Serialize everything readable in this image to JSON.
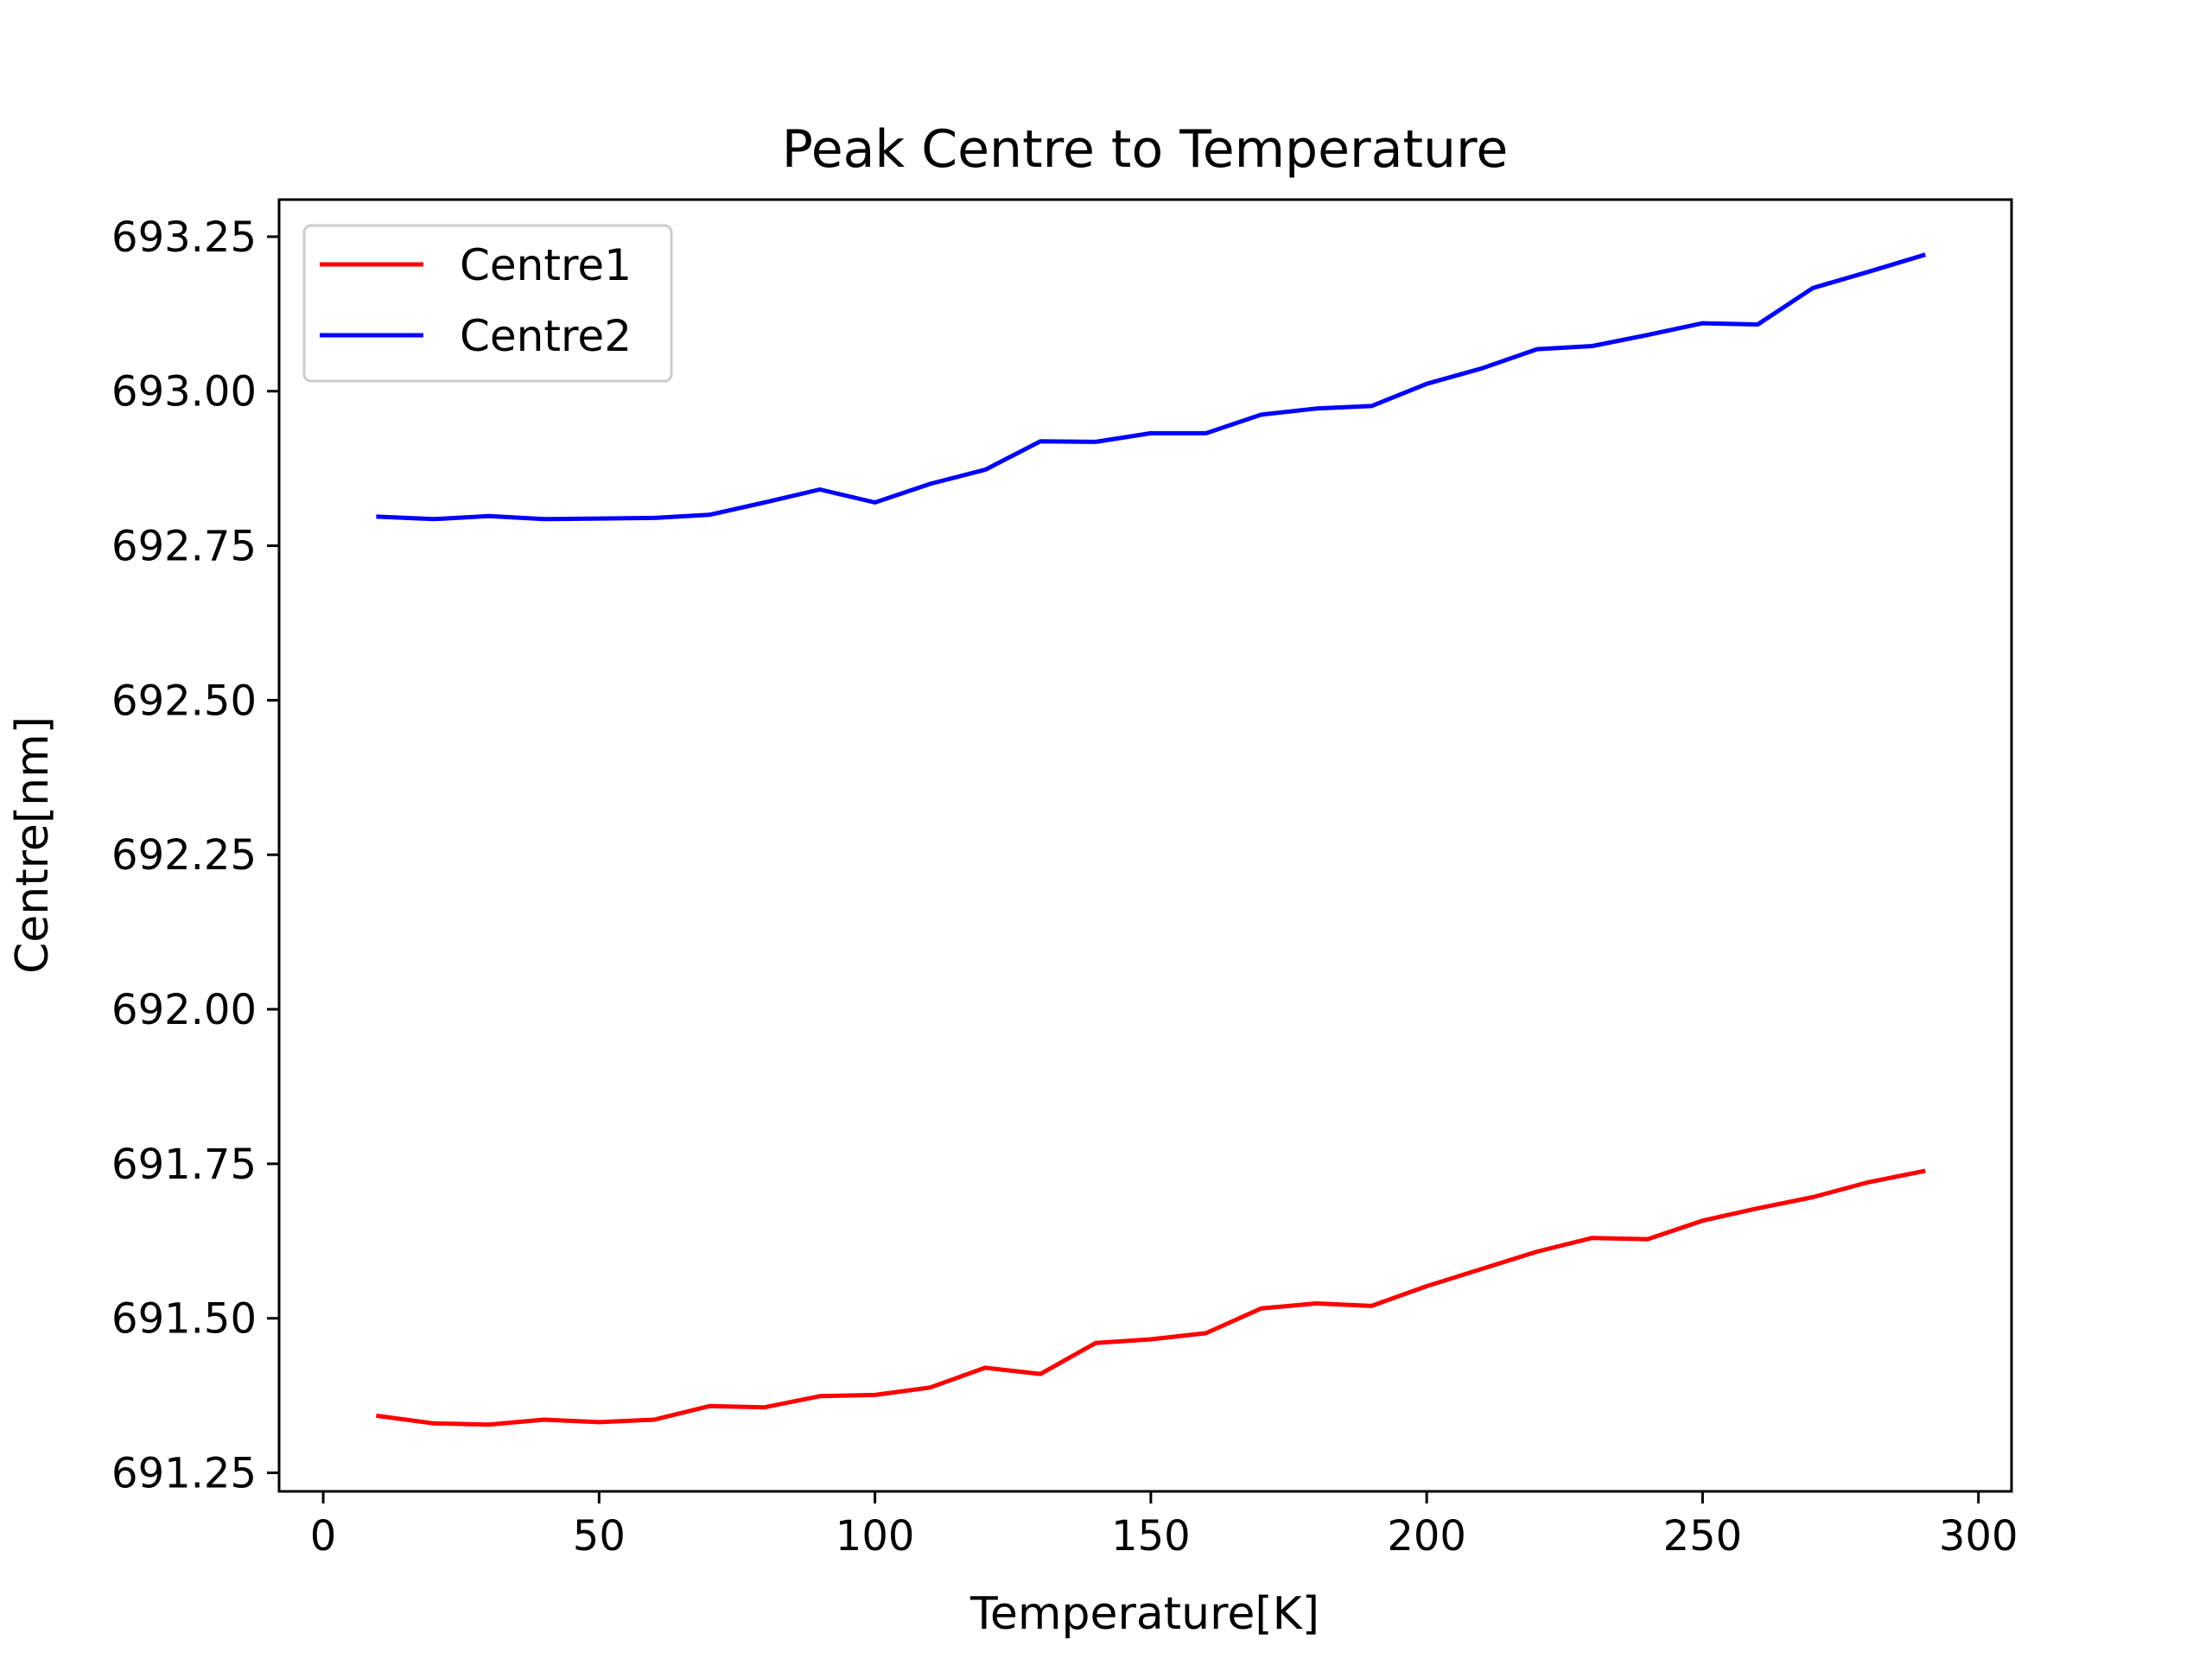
{
  "chart_data": {
    "type": "line",
    "title": "Peak Centre to Temperature",
    "xlabel": "Temperature[K]",
    "ylabel": "Centre[nm]",
    "xlim": [
      -8,
      306
    ],
    "ylim": [
      691.22,
      693.31
    ],
    "xticks": [
      0,
      50,
      100,
      150,
      200,
      250,
      300
    ],
    "xtick_labels": [
      "0",
      "50",
      "100",
      "150",
      "200",
      "250",
      "300"
    ],
    "yticks": [
      691.25,
      691.5,
      691.75,
      692.0,
      692.25,
      692.5,
      692.75,
      693.0,
      693.25
    ],
    "ytick_labels": [
      "691.25",
      "691.50",
      "691.75",
      "692.00",
      "692.25",
      "692.50",
      "692.75",
      "693.00",
      "693.25"
    ],
    "grid": false,
    "legend_position": "top-left",
    "x": [
      10,
      20,
      30,
      40,
      50,
      60,
      70,
      80,
      90,
      100,
      110,
      120,
      130,
      140,
      150,
      160,
      170,
      180,
      190,
      200,
      210,
      220,
      230,
      240,
      250,
      260,
      270,
      280,
      290
    ],
    "series": [
      {
        "name": "Centre1",
        "color": "#ff0000",
        "values": [
          691.342,
          691.33,
          691.328,
          691.336,
          691.332,
          691.336,
          691.358,
          691.356,
          691.374,
          691.376,
          691.388,
          691.42,
          691.41,
          691.46,
          691.466,
          691.476,
          691.516,
          691.524,
          691.52,
          691.552,
          691.58,
          691.608,
          691.63,
          691.628,
          691.658,
          691.678,
          691.696,
          691.72,
          691.738
        ]
      },
      {
        "name": "Centre2",
        "color": "#0000ff",
        "values": [
          692.797,
          692.793,
          692.798,
          692.793,
          692.794,
          692.795,
          692.8,
          692.82,
          692.841,
          692.82,
          692.85,
          692.873,
          692.919,
          692.918,
          692.932,
          692.932,
          692.962,
          692.972,
          692.976,
          693.012,
          693.037,
          693.068,
          693.073,
          693.091,
          693.11,
          693.108,
          693.167,
          693.193,
          693.22
        ]
      }
    ]
  }
}
